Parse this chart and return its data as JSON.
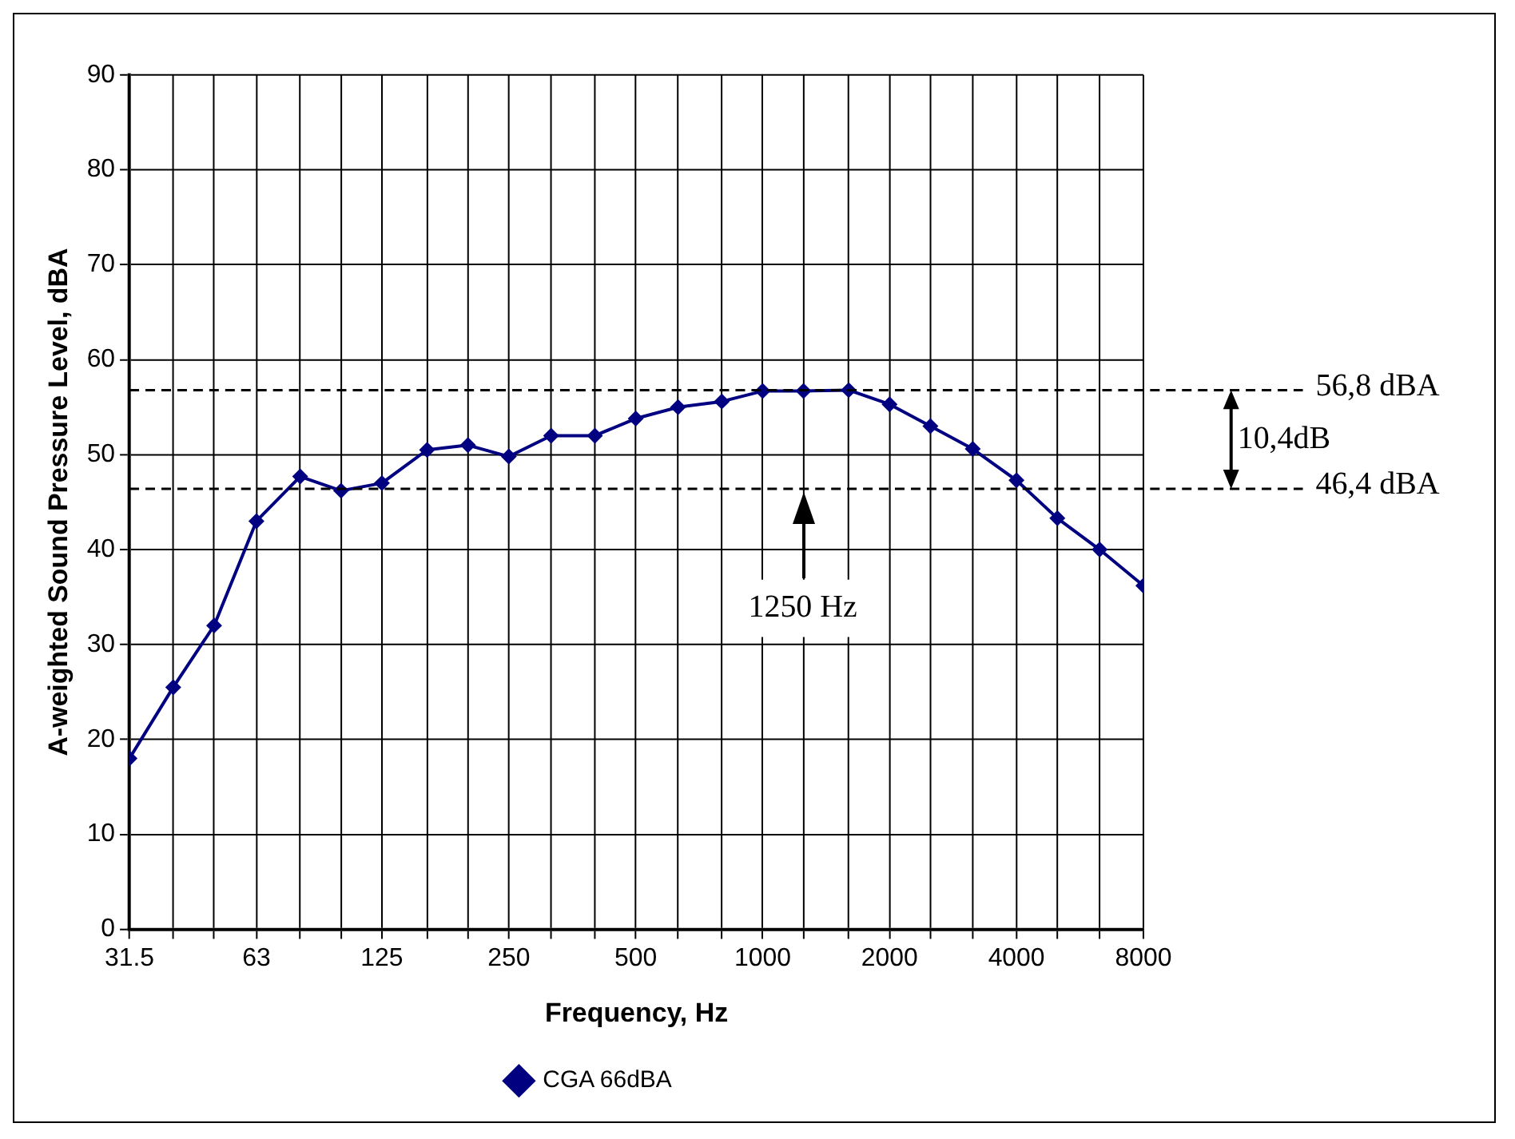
{
  "chart_data": {
    "type": "line",
    "xlabel": "Frequency, Hz",
    "ylabel": "A-weighted Sound Pressure Level, dBA",
    "log": "x",
    "grid": true,
    "legend": "bottom",
    "marker": "diamond",
    "line_style": "solid",
    "x": [
      31.5,
      40,
      50,
      63,
      80,
      100,
      125,
      160,
      200,
      250,
      315,
      400,
      500,
      630,
      800,
      1000,
      1250,
      1600,
      2000,
      2500,
      3150,
      4000,
      5000,
      6300,
      8000
    ],
    "series": [
      {
        "name": "CGA 66dBA",
        "color": "#000080",
        "values": [
          18,
          25.5,
          32,
          43,
          47.7,
          46.2,
          47,
          50.5,
          51,
          49.8,
          52,
          52,
          53.8,
          55,
          55.6,
          56.7,
          56.7,
          56.8,
          55.3,
          53,
          50.6,
          47.3,
          43.3,
          40,
          36.2
        ]
      }
    ],
    "xlim": [
      31.5,
      8000
    ],
    "xticks": [
      31.5,
      {
        "value": 40,
        "label": null
      },
      {
        "value": 50,
        "label": null
      },
      63,
      {
        "value": 80,
        "label": null
      },
      {
        "value": 100,
        "label": null
      },
      125,
      {
        "value": 160,
        "label": null
      },
      {
        "value": 200,
        "label": null
      },
      250,
      {
        "value": 315,
        "label": null
      },
      {
        "value": 400,
        "label": null
      },
      500,
      {
        "value": 630,
        "label": null
      },
      {
        "value": 800,
        "label": null
      },
      1000,
      {
        "value": 1250,
        "label": null
      },
      {
        "value": 1600,
        "label": null
      },
      2000,
      {
        "value": 2500,
        "label": null
      },
      {
        "value": 3150,
        "label": null
      },
      4000,
      {
        "value": 5000,
        "label": null
      },
      {
        "value": 6300,
        "label": null
      },
      8000
    ],
    "ylim": [
      0,
      90
    ],
    "yticks": [
      0,
      10,
      20,
      30,
      40,
      50,
      60,
      70,
      80,
      90
    ],
    "ref_lines": [
      {
        "axis": "y",
        "value": 56.8,
        "label": "56,8 dBA",
        "line_style": "dashed",
        "color": "#000000"
      },
      {
        "axis": "y",
        "value": 46.4,
        "label": "46,4 dBA",
        "line_style": "dashed",
        "color": "#000000"
      }
    ],
    "annotations": [
      "1250 Hz",
      "10,4dB"
    ]
  }
}
